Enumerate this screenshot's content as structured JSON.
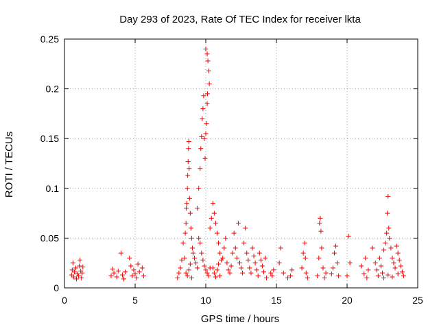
{
  "chart_data": {
    "type": "scatter",
    "title": "Day 293 of 2023, Rate Of TEC Index for receiver lkta",
    "xlabel": "GPS time / hours",
    "ylabel": "ROTI / TECUs",
    "xlim": [
      0,
      25
    ],
    "ylim": [
      0,
      0.25
    ],
    "xticks": [
      0,
      5,
      10,
      15,
      20,
      25
    ],
    "yticks": [
      0,
      0.05,
      0.1,
      0.15,
      0.2,
      0.25
    ],
    "grid": true,
    "marker": "+",
    "color": "#ee0000",
    "series": [
      {
        "points": [
          [
            0.5,
            0.013
          ],
          [
            0.55,
            0.018
          ],
          [
            0.6,
            0.025
          ],
          [
            0.65,
            0.011
          ],
          [
            0.7,
            0.016
          ],
          [
            0.8,
            0.02
          ],
          [
            0.85,
            0.009
          ],
          [
            0.9,
            0.014
          ],
          [
            1.0,
            0.012
          ],
          [
            1.05,
            0.022
          ],
          [
            1.1,
            0.028
          ],
          [
            1.15,
            0.017
          ],
          [
            1.2,
            0.01
          ],
          [
            1.25,
            0.015
          ],
          [
            1.3,
            0.021
          ],
          [
            3.3,
            0.012
          ],
          [
            3.4,
            0.019
          ],
          [
            3.5,
            0.015
          ],
          [
            3.7,
            0.011
          ],
          [
            3.8,
            0.017
          ],
          [
            4.0,
            0.035
          ],
          [
            4.1,
            0.013
          ],
          [
            4.2,
            0.009
          ],
          [
            4.3,
            0.016
          ],
          [
            4.6,
            0.03
          ],
          [
            4.7,
            0.022
          ],
          [
            4.8,
            0.012
          ],
          [
            4.9,
            0.018
          ],
          [
            5.0,
            0.014
          ],
          [
            5.1,
            0.01
          ],
          [
            5.2,
            0.024
          ],
          [
            5.3,
            0.016
          ],
          [
            5.5,
            0.02
          ],
          [
            5.6,
            0.012
          ],
          [
            8.0,
            0.01
          ],
          [
            8.1,
            0.015
          ],
          [
            8.2,
            0.02
          ],
          [
            8.3,
            0.028
          ],
          [
            8.4,
            0.045
          ],
          [
            8.5,
            0.03
          ],
          [
            8.55,
            0.055
          ],
          [
            8.6,
            0.065
          ],
          [
            8.62,
            0.08
          ],
          [
            8.65,
            0.085
          ],
          [
            8.7,
            0.1
          ],
          [
            8.72,
            0.113
          ],
          [
            8.75,
            0.127
          ],
          [
            8.78,
            0.14
          ],
          [
            8.8,
            0.147
          ],
          [
            8.82,
            0.12
          ],
          [
            8.85,
            0.09
          ],
          [
            8.9,
            0.075
          ],
          [
            8.95,
            0.06
          ],
          [
            9.0,
            0.05
          ],
          [
            9.05,
            0.04
          ],
          [
            9.1,
            0.035
          ],
          [
            9.2,
            0.03
          ],
          [
            9.3,
            0.025
          ],
          [
            9.4,
            0.02
          ],
          [
            8.6,
            0.015
          ],
          [
            8.7,
            0.012
          ],
          [
            8.8,
            0.018
          ],
          [
            8.9,
            0.024
          ],
          [
            9.0,
            0.01
          ],
          [
            9.4,
            0.08
          ],
          [
            9.5,
            0.1
          ],
          [
            9.6,
            0.12
          ],
          [
            9.65,
            0.14
          ],
          [
            9.7,
            0.152
          ],
          [
            9.75,
            0.17
          ],
          [
            9.8,
            0.18
          ],
          [
            9.85,
            0.193
          ],
          [
            9.9,
            0.15
          ],
          [
            9.95,
            0.13
          ],
          [
            10.0,
            0.155
          ],
          [
            10.05,
            0.165
          ],
          [
            10.1,
            0.185
          ],
          [
            10.12,
            0.195
          ],
          [
            10.0,
            0.24
          ],
          [
            10.1,
            0.235
          ],
          [
            10.15,
            0.228
          ],
          [
            10.2,
            0.218
          ],
          [
            10.25,
            0.205
          ],
          [
            9.5,
            0.05
          ],
          [
            9.6,
            0.045
          ],
          [
            9.7,
            0.035
          ],
          [
            9.8,
            0.028
          ],
          [
            9.9,
            0.022
          ],
          [
            10.0,
            0.018
          ],
          [
            10.1,
            0.015
          ],
          [
            10.2,
            0.012
          ],
          [
            10.3,
            0.02
          ],
          [
            10.3,
            0.06
          ],
          [
            10.4,
            0.07
          ],
          [
            10.5,
            0.085
          ],
          [
            10.6,
            0.075
          ],
          [
            10.7,
            0.065
          ],
          [
            10.8,
            0.055
          ],
          [
            10.9,
            0.045
          ],
          [
            11.0,
            0.035
          ],
          [
            11.1,
            0.028
          ],
          [
            10.5,
            0.02
          ],
          [
            10.6,
            0.015
          ],
          [
            10.7,
            0.011
          ],
          [
            10.8,
            0.018
          ],
          [
            10.9,
            0.024
          ],
          [
            11.0,
            0.012
          ],
          [
            11.2,
            0.03
          ],
          [
            11.3,
            0.04
          ],
          [
            11.4,
            0.05
          ],
          [
            11.5,
            0.025
          ],
          [
            11.6,
            0.018
          ],
          [
            11.7,
            0.015
          ],
          [
            11.8,
            0.022
          ],
          [
            11.9,
            0.035
          ],
          [
            12.0,
            0.055
          ],
          [
            12.1,
            0.04
          ],
          [
            12.2,
            0.03
          ],
          [
            12.3,
            0.065
          ],
          [
            12.4,
            0.025
          ],
          [
            12.5,
            0.02
          ],
          [
            12.6,
            0.015
          ],
          [
            12.7,
            0.045
          ],
          [
            12.8,
            0.06
          ],
          [
            12.9,
            0.035
          ],
          [
            13.0,
            0.028
          ],
          [
            13.1,
            0.02
          ],
          [
            13.2,
            0.015
          ],
          [
            13.3,
            0.04
          ],
          [
            13.4,
            0.032
          ],
          [
            13.5,
            0.025
          ],
          [
            13.6,
            0.018
          ],
          [
            13.7,
            0.012
          ],
          [
            13.8,
            0.035
          ],
          [
            13.9,
            0.028
          ],
          [
            14.0,
            0.022
          ],
          [
            14.1,
            0.016
          ],
          [
            14.2,
            0.03
          ],
          [
            14.3,
            0.01
          ],
          [
            14.6,
            0.015
          ],
          [
            14.7,
            0.012
          ],
          [
            14.8,
            0.018
          ],
          [
            15.2,
            0.025
          ],
          [
            15.3,
            0.04
          ],
          [
            15.5,
            0.015
          ],
          [
            15.8,
            0.01
          ],
          [
            16.0,
            0.012
          ],
          [
            16.1,
            0.018
          ],
          [
            16.8,
            0.02
          ],
          [
            16.9,
            0.035
          ],
          [
            17.0,
            0.045
          ],
          [
            17.05,
            0.03
          ],
          [
            17.1,
            0.015
          ],
          [
            17.2,
            0.01
          ],
          [
            17.9,
            0.012
          ],
          [
            18.0,
            0.03
          ],
          [
            18.1,
            0.07
          ],
          [
            18.05,
            0.065
          ],
          [
            18.15,
            0.057
          ],
          [
            18.2,
            0.04
          ],
          [
            18.3,
            0.02
          ],
          [
            18.4,
            0.01
          ],
          [
            18.5,
            0.015
          ],
          [
            18.9,
            0.014
          ],
          [
            19.0,
            0.02
          ],
          [
            19.1,
            0.035
          ],
          [
            19.2,
            0.042
          ],
          [
            19.3,
            0.025
          ],
          [
            19.4,
            0.012
          ],
          [
            20.0,
            0.012
          ],
          [
            20.1,
            0.052
          ],
          [
            20.2,
            0.025
          ],
          [
            21.0,
            0.022
          ],
          [
            21.2,
            0.014
          ],
          [
            21.3,
            0.03
          ],
          [
            21.4,
            0.01
          ],
          [
            21.5,
            0.018
          ],
          [
            21.8,
            0.04
          ],
          [
            22.0,
            0.025
          ],
          [
            22.1,
            0.018
          ],
          [
            22.2,
            0.012
          ],
          [
            22.3,
            0.03
          ],
          [
            22.4,
            0.022
          ],
          [
            22.5,
            0.015
          ],
          [
            22.6,
            0.038
          ],
          [
            22.7,
            0.045
          ],
          [
            22.8,
            0.055
          ],
          [
            22.85,
            0.075
          ],
          [
            22.9,
            0.092
          ],
          [
            22.95,
            0.06
          ],
          [
            23.0,
            0.05
          ],
          [
            23.1,
            0.04
          ],
          [
            23.2,
            0.03
          ],
          [
            23.3,
            0.025
          ],
          [
            23.4,
            0.02
          ],
          [
            23.5,
            0.042
          ],
          [
            23.6,
            0.035
          ],
          [
            23.7,
            0.028
          ],
          [
            23.8,
            0.022
          ],
          [
            23.9,
            0.016
          ],
          [
            24.0,
            0.012
          ],
          [
            22.6,
            0.01
          ],
          [
            22.9,
            0.013
          ],
          [
            23.2,
            0.011
          ],
          [
            23.6,
            0.014
          ]
        ]
      }
    ]
  }
}
